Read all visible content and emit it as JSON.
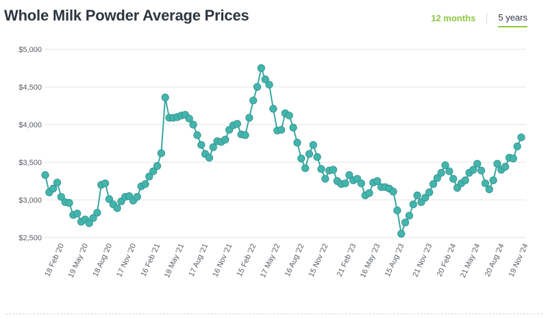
{
  "header": {
    "title": "Whole Milk Powder Average Prices",
    "tabs": [
      {
        "label": "12 months",
        "active": false
      },
      {
        "label": "5 years",
        "active": true
      }
    ]
  },
  "colors": {
    "line": "#39a6a0",
    "marker": "#43b5ad",
    "grid": "#e3e3e3",
    "accent": "#8cc63f"
  },
  "chart_data": {
    "type": "line",
    "title": "Whole Milk Powder Average Prices",
    "xlabel": "",
    "ylabel": "",
    "ylim": [
      2500,
      5000
    ],
    "yticks": [
      2500,
      3000,
      3500,
      4000,
      4500,
      5000
    ],
    "ytick_labels": [
      "$2,500",
      "$3,000",
      "$3,500",
      "$4,000",
      "$4,500",
      "$5,000"
    ],
    "grid": true,
    "legend": "none",
    "xtick_labels": [
      {
        "label": "18 Feb '20",
        "index": 4
      },
      {
        "label": "19 May '20",
        "index": 10
      },
      {
        "label": "18 Aug '20",
        "index": 16
      },
      {
        "label": "17 Nov '20",
        "index": 22
      },
      {
        "label": "16 Feb '21",
        "index": 28
      },
      {
        "label": "18 May '21",
        "index": 34
      },
      {
        "label": "17 Aug '21",
        "index": 40
      },
      {
        "label": "16 Nov '21",
        "index": 46
      },
      {
        "label": "15 Feb '22",
        "index": 52
      },
      {
        "label": "17 May '22",
        "index": 58
      },
      {
        "label": "16 Aug '22",
        "index": 64
      },
      {
        "label": "15 Nov '22",
        "index": 70
      },
      {
        "label": "21 Feb '23",
        "index": 77
      },
      {
        "label": "16 May '23",
        "index": 83
      },
      {
        "label": "15 Aug '23",
        "index": 89
      },
      {
        "label": "21 Nov '23",
        "index": 96
      },
      {
        "label": "20 Feb '24",
        "index": 102
      },
      {
        "label": "21 May '24",
        "index": 108
      },
      {
        "label": "20 Aug '24",
        "index": 114
      },
      {
        "label": "19 Nov '24",
        "index": 120
      }
    ],
    "series": [
      {
        "values": [
          3330,
          3100,
          3150,
          3230,
          3040,
          2970,
          2960,
          2800,
          2820,
          2710,
          2740,
          2690,
          2760,
          2830,
          3200,
          3220,
          3010,
          2940,
          2890,
          2980,
          3040,
          3050,
          2990,
          3040,
          3180,
          3210,
          3310,
          3380,
          3450,
          3620,
          4360,
          4090,
          4090,
          4100,
          4120,
          4130,
          4080,
          4000,
          3860,
          3730,
          3610,
          3560,
          3700,
          3780,
          3770,
          3800,
          3930,
          3990,
          4010,
          3870,
          3860,
          4090,
          4320,
          4500,
          4750,
          4600,
          4530,
          4210,
          3920,
          3930,
          4150,
          4120,
          3960,
          3760,
          3550,
          3420,
          3610,
          3730,
          3570,
          3410,
          3280,
          3390,
          3400,
          3250,
          3210,
          3220,
          3330,
          3260,
          3280,
          3220,
          3060,
          3090,
          3230,
          3250,
          3170,
          3170,
          3150,
          3110,
          2860,
          2550,
          2700,
          2790,
          2940,
          3060,
          2970,
          3030,
          3100,
          3210,
          3290,
          3360,
          3460,
          3380,
          3280,
          3160,
          3220,
          3260,
          3360,
          3400,
          3480,
          3390,
          3220,
          3140,
          3260,
          3480,
          3400,
          3440,
          3560,
          3550,
          3710,
          3830
        ]
      }
    ]
  }
}
